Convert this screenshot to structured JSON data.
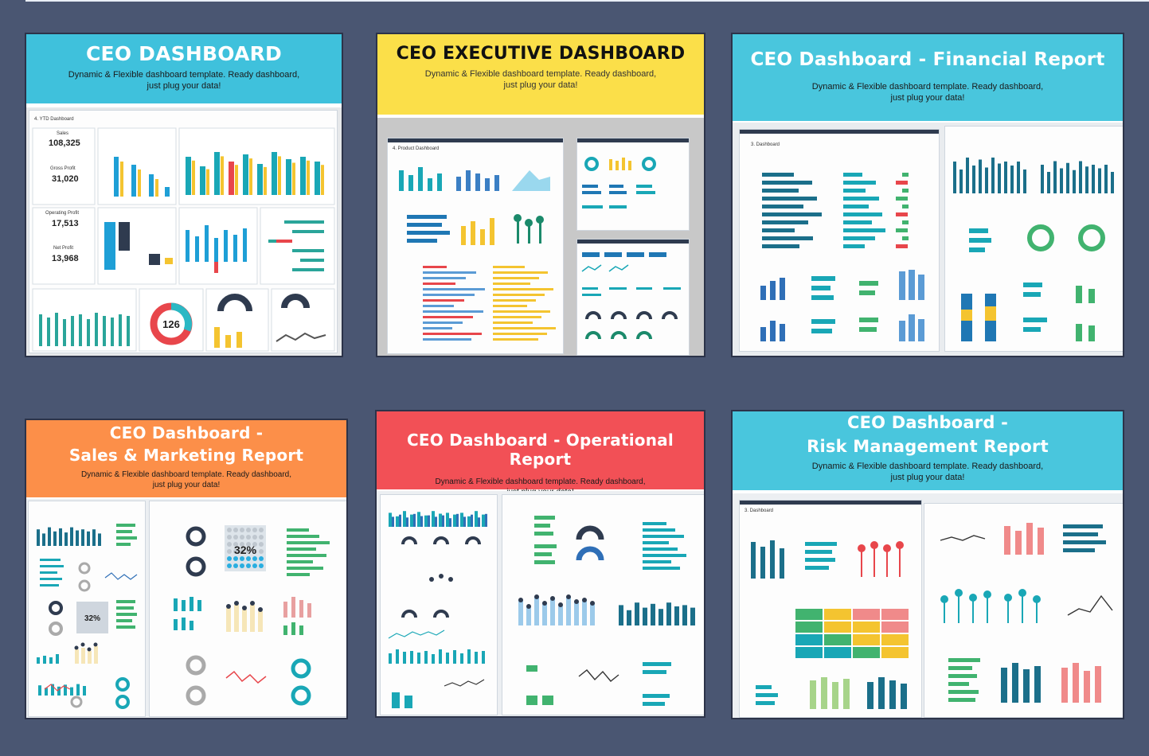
{
  "page": {
    "background": "#4a5672"
  },
  "cards": [
    {
      "id": "ceo-dashboard",
      "title": "CEO DASHBOARD",
      "title2": "",
      "subtitle": "Dynamic & Flexible dashboard template. Ready dashboard,\njust plug your data!",
      "banner_color": "#3fc1dc",
      "title_color": "#ffffff",
      "sub_color": "#1a1a1a",
      "preview": {
        "sheet_title": "4. YTD Dashboard",
        "kpi_sales": "108,325",
        "kpi_gross_profit": "31,020",
        "kpi_operating_profit": "17,513",
        "kpi_net_profit": "13,968",
        "headcount": "126"
      }
    },
    {
      "id": "ceo-executive-dashboard",
      "title": "CEO EXECUTIVE DASHBOARD",
      "title2": "",
      "subtitle": "Dynamic & Flexible dashboard template. Ready dashboard,\njust plug your data!",
      "banner_color": "#fbdf49",
      "title_color": "#111111",
      "sub_color": "#333333",
      "preview": {
        "sheet_title": "4. Product Dashboard"
      }
    },
    {
      "id": "ceo-dashboard-financial",
      "title": "CEO Dashboard - Financial Report",
      "title2": "",
      "subtitle": "Dynamic & Flexible dashboard template. Ready dashboard,\njust plug your data!",
      "banner_color": "#49c6dd",
      "title_color": "#ffffff",
      "sub_color": "#1a1a1a",
      "preview": {
        "sheet_title": "3. Dashboard"
      }
    },
    {
      "id": "ceo-dashboard-sales-marketing",
      "title": "CEO Dashboard -",
      "title2": "Sales & Marketing Report",
      "subtitle": "Dynamic & Flexible dashboard template. Ready dashboard,\njust plug your data!",
      "banner_color": "#fc8f49",
      "title_color": "#ffffff",
      "sub_color": "#1a1a1a",
      "preview": {
        "pct_left": "32%",
        "pct_right": "32%"
      }
    },
    {
      "id": "ceo-dashboard-operational",
      "title": "CEO Dashboard - Operational Report",
      "title2": "",
      "subtitle": "Dynamic & Flexible dashboard template. Ready dashboard,\njust plug your data!",
      "banner_color": "#f25056",
      "title_color": "#ffffff",
      "sub_color": "#1a1a1a",
      "preview": {}
    },
    {
      "id": "ceo-dashboard-risk",
      "title": "CEO Dashboard -",
      "title2": "Risk Management Report",
      "subtitle": "Dynamic & Flexible dashboard template. Ready dashboard,\njust plug your data!",
      "banner_color": "#49c6dd",
      "title_color": "#ffffff",
      "sub_color": "#1a1a1a",
      "preview": {
        "sheet_title": "3. Dashboard"
      }
    }
  ]
}
